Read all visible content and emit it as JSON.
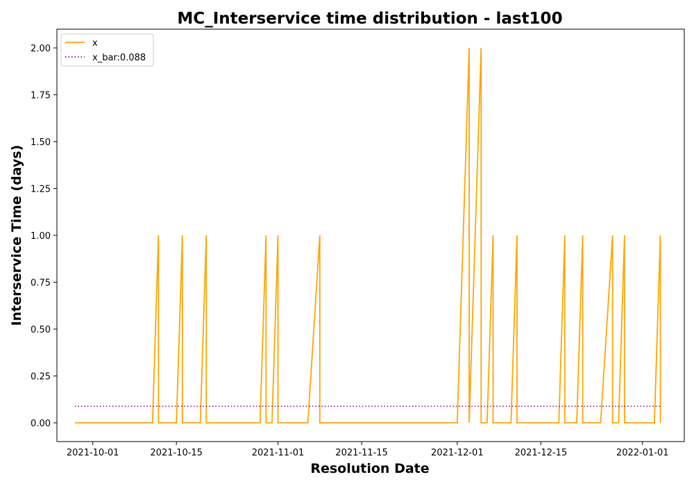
{
  "chart_data": {
    "type": "line",
    "title": "MC_Interservice time distribution - last100",
    "xlabel": "Resolution Date",
    "ylabel": "Interservice Time (days)",
    "xlim": [
      "2021-09-25",
      "2022-01-08"
    ],
    "ylim": [
      -0.1,
      2.1
    ],
    "x_ticks": [
      "2021-10-01",
      "2021-10-15",
      "2021-11-01",
      "2021-11-15",
      "2021-12-01",
      "2021-12-15",
      "2022-01-01"
    ],
    "y_ticks": [
      "0.00",
      "0.25",
      "0.50",
      "0.75",
      "1.00",
      "1.25",
      "1.50",
      "1.75",
      "2.00"
    ],
    "grid": false,
    "legend_position": "top-left",
    "series": [
      {
        "name": "x",
        "style": "solid",
        "color": "#ffa500",
        "points": [
          [
            "2021-09-28",
            0
          ],
          [
            "2021-10-11",
            0
          ],
          [
            "2021-10-12",
            1
          ],
          [
            "2021-10-12",
            0
          ],
          [
            "2021-10-15",
            0
          ],
          [
            "2021-10-16",
            1
          ],
          [
            "2021-10-16",
            0
          ],
          [
            "2021-10-19",
            0
          ],
          [
            "2021-10-20",
            1
          ],
          [
            "2021-10-20",
            0
          ],
          [
            "2021-10-29",
            0
          ],
          [
            "2021-10-30",
            1
          ],
          [
            "2021-10-30",
            0
          ],
          [
            "2021-10-31",
            0
          ],
          [
            "2021-11-01",
            1
          ],
          [
            "2021-11-01",
            0
          ],
          [
            "2021-11-06",
            0
          ],
          [
            "2021-11-08",
            1
          ],
          [
            "2021-11-08",
            0
          ],
          [
            "2021-12-01",
            0
          ],
          [
            "2021-12-03",
            2
          ],
          [
            "2021-12-03",
            0
          ],
          [
            "2021-12-05",
            2
          ],
          [
            "2021-12-05",
            0
          ],
          [
            "2021-12-06",
            0
          ],
          [
            "2021-12-07",
            1
          ],
          [
            "2021-12-07",
            0
          ],
          [
            "2021-12-10",
            0
          ],
          [
            "2021-12-11",
            1
          ],
          [
            "2021-12-11",
            0
          ],
          [
            "2021-12-18",
            0
          ],
          [
            "2021-12-19",
            1
          ],
          [
            "2021-12-19",
            0
          ],
          [
            "2021-12-21",
            0
          ],
          [
            "2021-12-22",
            1
          ],
          [
            "2021-12-22",
            0
          ],
          [
            "2021-12-25",
            0
          ],
          [
            "2021-12-27",
            1
          ],
          [
            "2021-12-27",
            0
          ],
          [
            "2021-12-28",
            0
          ],
          [
            "2021-12-29",
            1
          ],
          [
            "2021-12-29",
            0
          ],
          [
            "2022-01-03",
            0
          ],
          [
            "2022-01-04",
            1
          ],
          [
            "2022-01-04",
            0
          ]
        ]
      },
      {
        "name": "x_bar:0.088",
        "style": "dotted",
        "color": "#800080",
        "points": [
          [
            "2021-09-28",
            0.088
          ],
          [
            "2022-01-04",
            0.088
          ]
        ]
      }
    ]
  }
}
